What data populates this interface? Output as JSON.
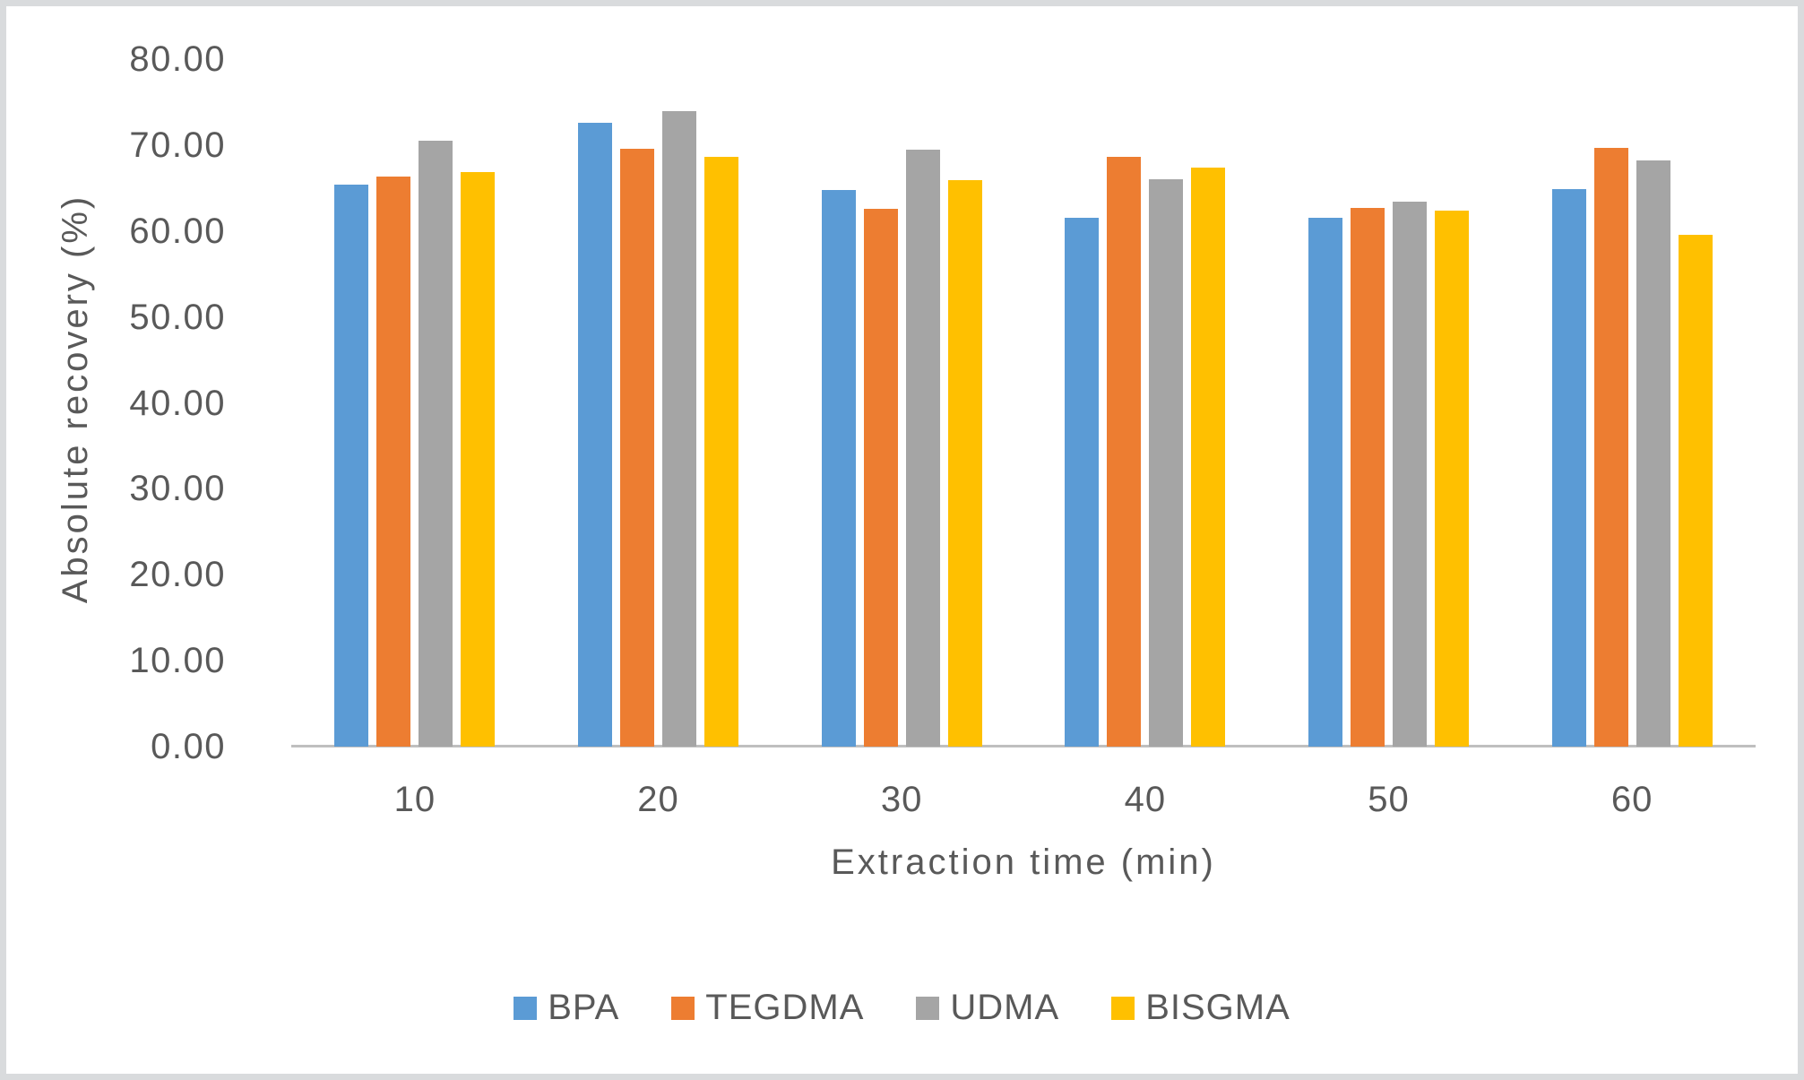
{
  "figure": {
    "background": "#FFFFFF",
    "border_color": "#D9DBDD"
  },
  "chart_data": {
    "type": "bar",
    "title": "",
    "categories": [
      "10",
      "20",
      "30",
      "40",
      "50",
      "60"
    ],
    "series": [
      {
        "name": "BPA",
        "color": "#5B9BD5",
        "values": [
          65.4,
          72.6,
          64.8,
          61.5,
          61.5,
          64.9
        ]
      },
      {
        "name": "TEGDMA",
        "color": "#ED7D31",
        "values": [
          66.3,
          69.6,
          62.6,
          68.6,
          62.7,
          69.7
        ]
      },
      {
        "name": "UDMA",
        "color": "#A5A5A5",
        "values": [
          70.5,
          73.9,
          69.5,
          66.0,
          63.4,
          68.2
        ]
      },
      {
        "name": "BISGMA",
        "color": "#FFC000",
        "values": [
          66.9,
          68.6,
          65.9,
          67.4,
          62.4,
          59.6
        ]
      }
    ],
    "xlabel": "Extraction time (min)",
    "ylabel": "Absolute recovery (%)",
    "ylim": [
      0,
      80
    ],
    "ytick_step": 10,
    "ytick_labels": [
      "0.00",
      "10.00",
      "20.00",
      "30.00",
      "40.00",
      "50.00",
      "60.00",
      "70.00",
      "80.00"
    ],
    "grid": false,
    "legend_position": "bottom",
    "axis_line_color": "#BFBFBF",
    "text_color": "#595959"
  }
}
